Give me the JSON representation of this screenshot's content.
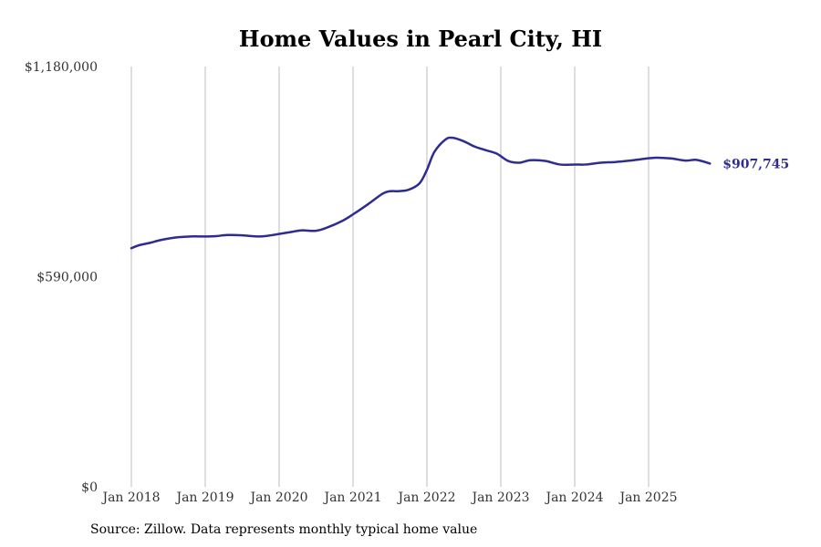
{
  "chart_data": {
    "type": "line",
    "title": "Home Values in Pearl City, HI",
    "xlabel": "",
    "ylabel": "",
    "ylim": [
      0,
      1180000
    ],
    "y_ticks": [
      0,
      590000,
      1180000
    ],
    "y_tick_labels": [
      "$0",
      "$590,000",
      "$1,180,000"
    ],
    "x_ticks": [
      2018,
      2019,
      2020,
      2021,
      2022,
      2023,
      2024,
      2025
    ],
    "x_tick_labels": [
      "Jan 2018",
      "Jan 2019",
      "Jan 2020",
      "Jan 2021",
      "Jan 2022",
      "Jan 2023",
      "Jan 2024",
      "Jan 2025"
    ],
    "xlim": [
      2017.85,
      2026.3
    ],
    "grid": "vertical",
    "series": [
      {
        "name": "Typical home value",
        "color": "#2e2d8f",
        "x": [
          2018.0,
          2018.1,
          2018.25,
          2018.4,
          2018.6,
          2018.8,
          2019.0,
          2019.15,
          2019.3,
          2019.5,
          2019.7,
          2019.85,
          2020.0,
          2020.15,
          2020.3,
          2020.5,
          2020.65,
          2020.85,
          2021.0,
          2021.2,
          2021.4,
          2021.5,
          2021.6,
          2021.75,
          2021.9,
          2022.0,
          2022.1,
          2022.25,
          2022.35,
          2022.5,
          2022.65,
          2022.8,
          2022.95,
          2023.1,
          2023.25,
          2023.4,
          2023.6,
          2023.8,
          2024.0,
          2024.15,
          2024.35,
          2024.55,
          2024.75,
          2024.9,
          2025.1,
          2025.3,
          2025.5,
          2025.65,
          2025.83
        ],
        "values": [
          670000,
          678000,
          685000,
          693000,
          700000,
          703000,
          703000,
          704000,
          707000,
          706000,
          703000,
          705000,
          710000,
          715000,
          720000,
          719000,
          728000,
          746000,
          765000,
          793000,
          823000,
          830000,
          830000,
          834000,
          852000,
          890000,
          940000,
          975000,
          980000,
          970000,
          955000,
          945000,
          935000,
          915000,
          910000,
          917000,
          915000,
          905000,
          905000,
          905000,
          910000,
          912000,
          916000,
          920000,
          924000,
          922000,
          916000,
          918000,
          907745
        ]
      }
    ],
    "annotations": [
      {
        "text": "$907,745",
        "x": 2025.83,
        "y": 907745,
        "color": "#2e2d8f"
      }
    ]
  },
  "footer": {
    "source": "Source: Zillow. Data represents monthly typical home value"
  }
}
